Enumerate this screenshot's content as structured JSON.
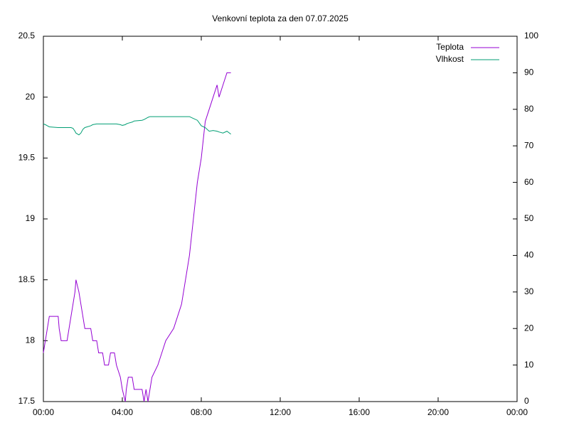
{
  "chart_data": {
    "type": "line",
    "title": "Venkovní teplota za den 07.07.2025",
    "x": [
      0,
      0.1,
      0.2,
      0.3,
      0.75,
      0.8,
      0.9,
      1.2,
      1.3,
      1.4,
      1.5,
      1.6,
      1.65,
      1.8,
      1.9,
      2.0,
      2.1,
      2.4,
      2.5,
      2.7,
      2.8,
      3.0,
      3.1,
      3.3,
      3.4,
      3.6,
      3.7,
      3.9,
      4.0,
      4.15,
      4.2,
      4.3,
      4.5,
      4.6,
      5.0,
      5.1,
      5.2,
      5.3,
      5.4,
      5.5,
      5.8,
      6.0,
      6.2,
      6.6,
      6.8,
      7.0,
      7.2,
      7.4,
      7.6,
      7.8,
      8.0,
      8.2,
      8.4,
      8.6,
      8.8,
      8.9,
      9.1,
      9.3,
      9.5
    ],
    "series": [
      {
        "name": "Teplota",
        "color": "#9400d3",
        "axis": "y",
        "values": [
          17.9,
          18.0,
          18.1,
          18.2,
          18.2,
          18.1,
          18.0,
          18.0,
          18.1,
          18.2,
          18.3,
          18.4,
          18.5,
          18.4,
          18.3,
          18.2,
          18.1,
          18.1,
          18.0,
          18.0,
          17.9,
          17.9,
          17.8,
          17.8,
          17.9,
          17.9,
          17.8,
          17.7,
          17.6,
          17.5,
          17.6,
          17.7,
          17.7,
          17.6,
          17.6,
          17.5,
          17.6,
          17.5,
          17.6,
          17.7,
          17.8,
          17.9,
          18.0,
          18.1,
          18.2,
          18.3,
          18.5,
          18.7,
          19.0,
          19.3,
          19.5,
          19.8,
          19.9,
          20.0,
          20.1,
          20.0,
          20.1,
          20.2,
          20.2
        ]
      },
      {
        "name": "Vlhkost",
        "color": "#009e73",
        "axis": "y2",
        "values": [
          76,
          75.8,
          75.5,
          75.2,
          75,
          75,
          75,
          75,
          75,
          75,
          74.8,
          74,
          73.5,
          73,
          73.5,
          74.5,
          75,
          75.5,
          75.8,
          76,
          76,
          76,
          76,
          76,
          76,
          76,
          76,
          75.8,
          75.6,
          75.8,
          76,
          76.2,
          76.5,
          76.8,
          77,
          77.2,
          77.5,
          77.8,
          78,
          78,
          78,
          78,
          78,
          78,
          78,
          78,
          78,
          78,
          77.5,
          77,
          75.5,
          75,
          74,
          74.2,
          74,
          73.8,
          73.5,
          74,
          73.2
        ]
      }
    ],
    "xlim": [
      0,
      24
    ],
    "xticks": [
      {
        "value": 0,
        "label": "00:00"
      },
      {
        "value": 4,
        "label": "04:00"
      },
      {
        "value": 8,
        "label": "08:00"
      },
      {
        "value": 12,
        "label": "12:00"
      },
      {
        "value": 16,
        "label": "16:00"
      },
      {
        "value": 20,
        "label": "20:00"
      },
      {
        "value": 24,
        "label": "00:00"
      }
    ],
    "ylim": [
      17.5,
      20.5
    ],
    "yticks": [
      17.5,
      18,
      18.5,
      19,
      19.5,
      20,
      20.5
    ],
    "y2lim": [
      0,
      100
    ],
    "y2ticks": [
      0,
      10,
      20,
      30,
      40,
      50,
      60,
      70,
      80,
      90,
      100
    ],
    "legend": "top-right"
  }
}
